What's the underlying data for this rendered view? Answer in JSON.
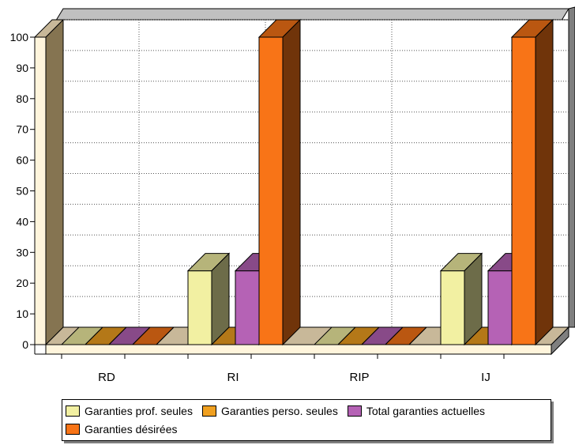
{
  "chart_data": {
    "type": "bar",
    "categories": [
      "RD",
      "RI",
      "RIP",
      "IJ"
    ],
    "series": [
      {
        "name": "Garanties prof. seules",
        "values": [
          0,
          24,
          0,
          24
        ],
        "color": "#f2f0a2"
      },
      {
        "name": "Garanties perso. seules",
        "values": [
          0,
          0,
          0,
          0
        ],
        "color": "#f0a020"
      },
      {
        "name": "Total garanties actuelles",
        "values": [
          0,
          24,
          0,
          24
        ],
        "color": "#b562b5"
      },
      {
        "name": "Garanties désirées",
        "values": [
          0,
          100,
          0,
          100
        ],
        "color": "#f87417"
      }
    ],
    "ylim": [
      0,
      100
    ],
    "yticks": [
      "0",
      "10",
      "20",
      "30",
      "40",
      "50",
      "60",
      "70",
      "80",
      "90",
      "100"
    ],
    "grid": true,
    "legend_position": "bottom",
    "style": "3d-column"
  }
}
